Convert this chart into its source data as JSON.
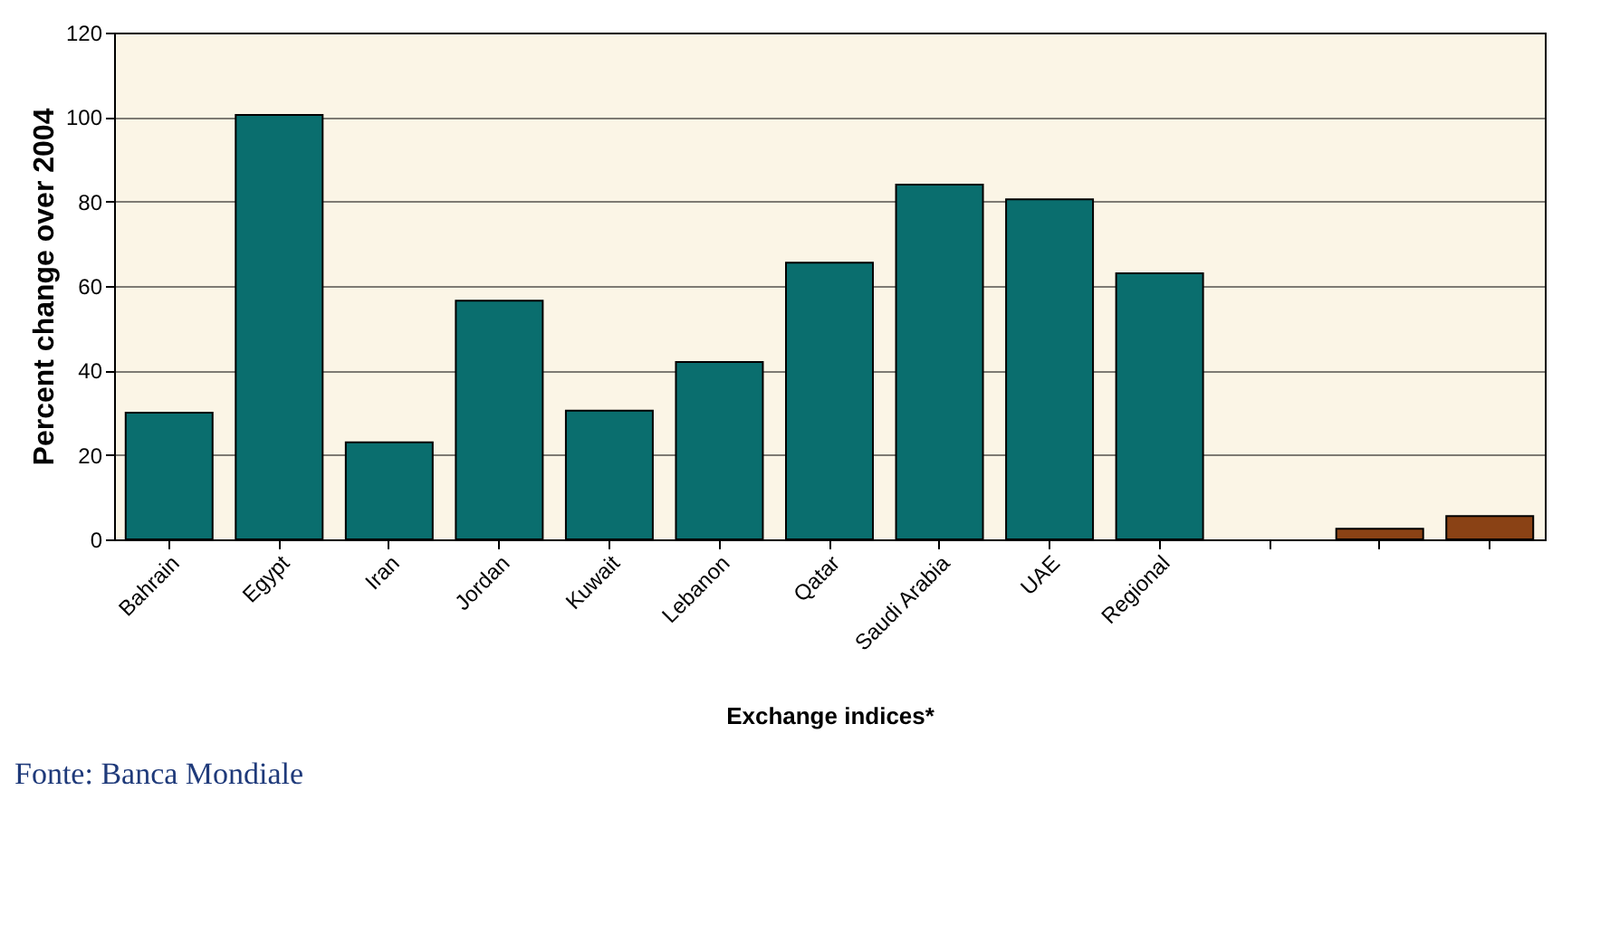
{
  "chart_data": {
    "type": "bar",
    "xlabel": "Exchange indices*",
    "ylabel": "Percent change over 2004",
    "categories": [
      "Bahrain",
      "Egypt",
      "Iran",
      "Jordan",
      "Kuwait",
      "Lebanon",
      "Qatar",
      "Saudi Arabia",
      "UAE",
      "Regional",
      null,
      null,
      null
    ],
    "values": [
      30,
      100.5,
      23,
      56.5,
      30.5,
      42,
      65.5,
      84,
      80.5,
      63,
      null,
      2.5,
      5.5
    ],
    "colors": [
      "#0a6e6e",
      "#0a6e6e",
      "#0a6e6e",
      "#0a6e6e",
      "#0a6e6e",
      "#0a6e6e",
      "#0a6e6e",
      "#0a6e6e",
      "#0a6e6e",
      "#0a6e6e",
      "#0a6e6e",
      "#8a4215",
      "#8a4215"
    ],
    "ylim": [
      0,
      120
    ],
    "yticks": [
      0,
      20,
      40,
      60,
      80,
      100,
      120
    ],
    "grid": "y",
    "annotations": [
      "Fonte: Banca Mondiale"
    ]
  }
}
